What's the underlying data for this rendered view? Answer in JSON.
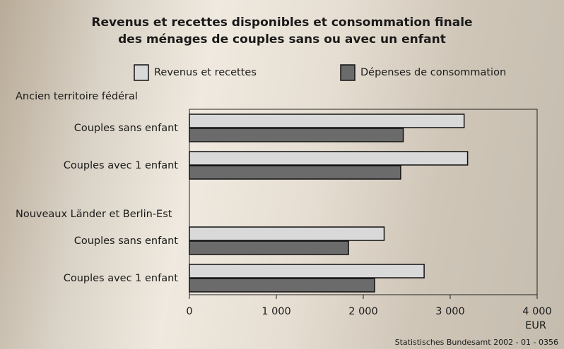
{
  "chart_data": {
    "type": "bar",
    "horizontal": true,
    "title": "Revenus et recettes disponibles et consommation finale\ndes ménages de couples sans ou avec un enfant",
    "group_labels": [
      "Ancien territoire fédéral",
      "Nouveaux Länder et Berlin-Est"
    ],
    "categories": [
      "Couples sans enfant",
      "Couples avec 1 enfant",
      "Couples sans enfant",
      "Couples avec 1 enfant"
    ],
    "series": [
      {
        "name": "Revenus et recettes",
        "color": "#d9d9d9",
        "values": [
          3160,
          3200,
          2240,
          2700
        ]
      },
      {
        "name": "Dépenses de consommation",
        "color": "#6b6b6b",
        "values": [
          2460,
          2430,
          1830,
          2130
        ]
      }
    ],
    "xlim": [
      0,
      4000
    ],
    "xticks": [
      0,
      {
        "value": 1000,
        "label": "1 000"
      },
      {
        "value": 2000,
        "label": "2 000"
      },
      {
        "value": 3000,
        "label": "3 000"
      },
      {
        "value": 4000,
        "label": "4 000"
      }
    ],
    "xlabel": "EUR",
    "source": "Statistisches Bundesamt 2002 - 01 - 0356"
  }
}
